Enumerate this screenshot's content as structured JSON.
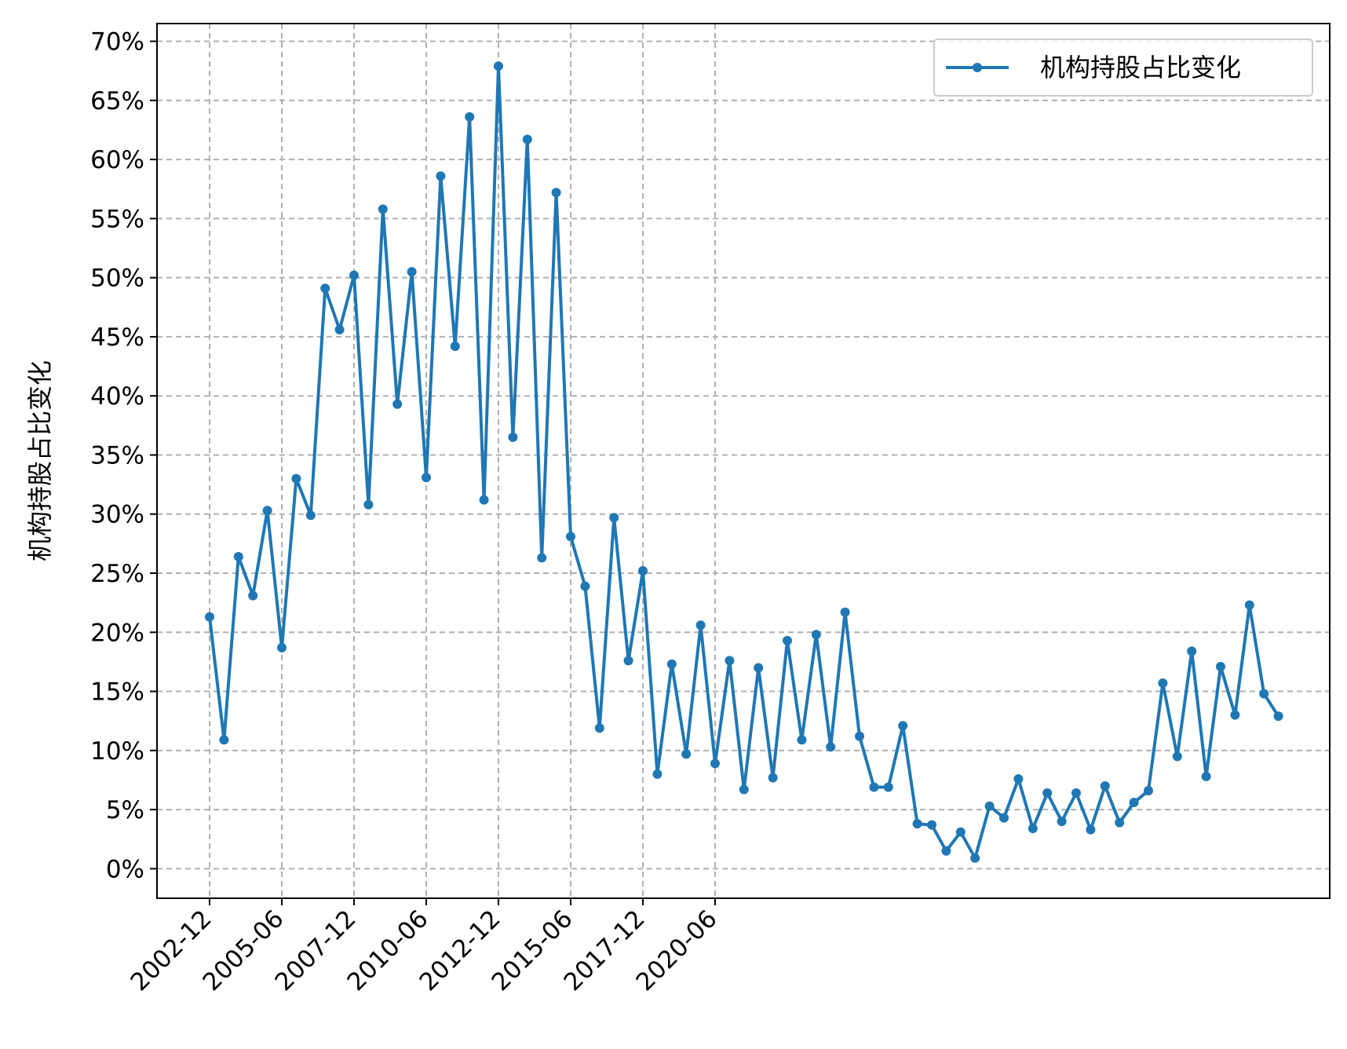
{
  "chart_data": {
    "type": "line",
    "title": "",
    "xlabel": "",
    "ylabel": "机构持股占比变化",
    "y_unit": "%",
    "ylim": [
      -2.5,
      71.5
    ],
    "yticks": [
      0,
      5,
      10,
      15,
      20,
      25,
      30,
      35,
      40,
      45,
      50,
      55,
      60,
      65,
      70
    ],
    "ytick_labels": [
      "0%",
      "5%",
      "10%",
      "15%",
      "20%",
      "25%",
      "30%",
      "35%",
      "40%",
      "45%",
      "50%",
      "55%",
      "60%",
      "65%",
      "70%"
    ],
    "xticks": [
      "2002-12",
      "2005-06",
      "2007-12",
      "2010-06",
      "2012-12",
      "2015-06",
      "2017-12",
      "2020-06"
    ],
    "grid": true,
    "legend": {
      "position": "upper-right"
    },
    "color": "#1f77b4",
    "series": [
      {
        "name": "机构持股占比变化",
        "x": [
          "2002-12",
          "2003-06",
          "2003-12",
          "2004-06",
          "2004-12",
          "2005-06",
          "2005-12",
          "2006-06",
          "2006-12",
          "2007-06",
          "2007-12",
          "2008-06",
          "2008-12",
          "2009-06",
          "2009-12",
          "2010-06",
          "2010-12",
          "2011-06",
          "2011-12",
          "2012-06",
          "2012-12",
          "2013-06",
          "2013-12",
          "2014-06",
          "2014-12",
          "2015-06",
          "2015-12",
          "2016-06",
          "2016-12",
          "2017-06",
          "2017-12",
          "2018-06",
          "2018-12",
          "2019-06",
          "2019-12",
          "2020-06",
          "2020-12",
          "2021-06",
          "2021-12",
          "2022-06",
          "2022-12",
          "2023-06",
          "2023-12",
          "2024-06",
          "2024-12",
          "2025-06",
          "2025-12",
          "2026-06",
          "2026-12",
          "2027-06",
          "2027-12",
          "2028-06",
          "2028-12",
          "2029-06",
          "2029-12",
          "2030-06",
          "2030-12",
          "2031-06",
          "2031-12",
          "2032-06",
          "2032-12",
          "2033-06",
          "2033-12",
          "2034-06",
          "2034-12",
          "2035-06",
          "2035-12",
          "2036-06",
          "2036-12",
          "2037-06",
          "2037-12",
          "2038-06",
          "2038-12",
          "2039-06",
          "2039-12"
        ],
        "values": [
          21.3,
          10.9,
          26.4,
          23.1,
          30.3,
          18.7,
          33.0,
          29.9,
          49.1,
          45.6,
          50.2,
          30.8,
          55.8,
          39.3,
          50.5,
          33.1,
          58.6,
          44.2,
          63.6,
          31.2,
          67.9,
          36.5,
          61.7,
          26.3,
          57.2,
          28.1,
          23.9,
          11.9,
          29.7,
          17.6,
          25.2,
          8.0,
          17.3,
          9.7,
          20.6,
          8.9,
          17.6,
          6.7,
          17.0,
          7.7,
          19.3,
          10.9,
          19.8,
          10.3,
          21.7,
          11.2,
          6.9,
          6.9,
          12.1,
          3.8,
          3.7,
          1.5,
          3.1,
          0.9,
          5.3,
          4.3,
          7.6,
          3.4,
          6.4,
          4.0,
          6.4,
          3.3,
          7.0,
          3.9,
          5.6,
          6.6,
          15.7,
          9.5,
          18.4,
          7.8,
          17.1,
          13.0,
          22.3,
          14.8,
          12.9
        ]
      }
    ]
  }
}
